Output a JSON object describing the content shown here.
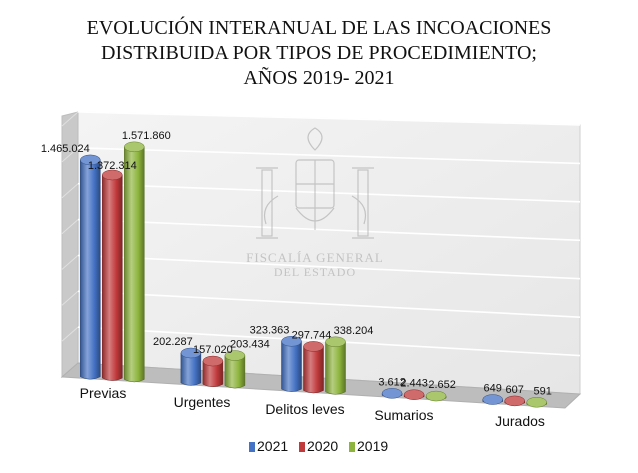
{
  "title_lines": [
    "EVOLUCIÓN INTERANUAL DE LAS INCOACIONES",
    "DISTRIBUIDA POR TIPOS DE PROCEDIMIENTO;",
    "AÑOS 2019- 2021"
  ],
  "watermark": {
    "line1": "FISCALÍA GENERAL",
    "line2": "DEL ESTADO"
  },
  "chart_data": {
    "type": "bar",
    "style": "3d-clustered-column",
    "categories": [
      "Previas",
      "Urgentes",
      "Delitos leves",
      "Sumarios",
      "Jurados"
    ],
    "series": [
      {
        "name": "2021",
        "color": "#4472C4",
        "values": [
          1465024,
          202287,
          323363,
          3612,
          649
        ],
        "labels": [
          "1.465.024",
          "202.287",
          "323.363",
          "3.612",
          "649"
        ]
      },
      {
        "name": "2020",
        "color": "#C0393B",
        "values": [
          1372314,
          157020,
          297744,
          2443,
          607
        ],
        "labels": [
          "1.372.314",
          "157.020",
          "297.744",
          "2.443",
          "607"
        ]
      },
      {
        "name": "2019",
        "color": "#8DB43C",
        "values": [
          1571860,
          203434,
          338204,
          2652,
          591
        ],
        "labels": [
          "1.571.860",
          "203.434",
          "338.204",
          "2.652",
          "591"
        ]
      }
    ],
    "ylim": [
      0,
      1750000
    ],
    "grid": true,
    "legend_position": "bottom"
  }
}
